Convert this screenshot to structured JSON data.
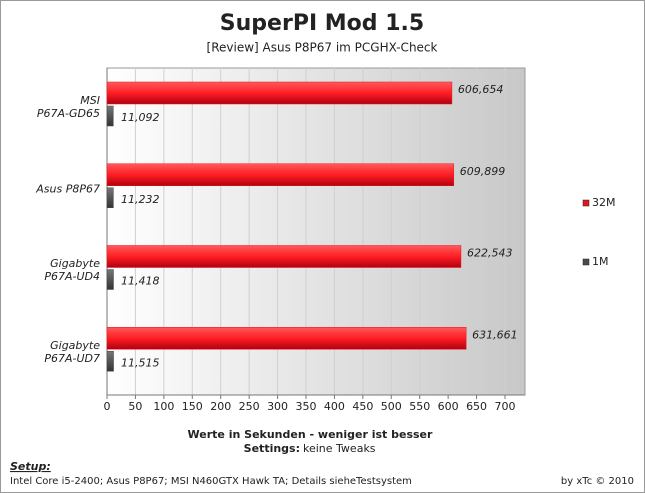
{
  "chart_data": {
    "type": "bar",
    "orientation": "horizontal",
    "title": "SuperPI Mod 1.5",
    "subtitle": "[Review] Asus P8P67 im PCGHX-Check",
    "x_label": "Werte in Sekunden - weniger ist besser",
    "settings_label": "Settings:",
    "settings": "keine Tweaks",
    "setup_label": "Setup:",
    "setup": "Intel Core i5-2400; Asus P8P67; MSI N460GTX Hawk TA; Details sieheTestsystem",
    "credit": "by xTc © 2010",
    "categories": [
      "MSI\nP67A-GD65",
      "Asus P8P67",
      "Gigabyte\nP67A-UD4",
      "Gigabyte\nP67A-UD7"
    ],
    "series": [
      {
        "name": "32M",
        "color": "#e8141c",
        "values": [
          606.654,
          609.899,
          622.543,
          631.661
        ],
        "value_labels": [
          "606,654",
          "609,899",
          "622,543",
          "631,661"
        ]
      },
      {
        "name": "1M",
        "color": "#4a4a4a",
        "values": [
          11.092,
          11.232,
          11.418,
          11.515
        ],
        "value_labels": [
          "11,092",
          "11,232",
          "11,418",
          "11,515"
        ]
      }
    ],
    "xlim": [
      0,
      700
    ],
    "xticks": [
      0,
      50,
      100,
      150,
      200,
      250,
      300,
      350,
      400,
      450,
      500,
      550,
      600,
      650,
      700
    ],
    "grid": true
  }
}
